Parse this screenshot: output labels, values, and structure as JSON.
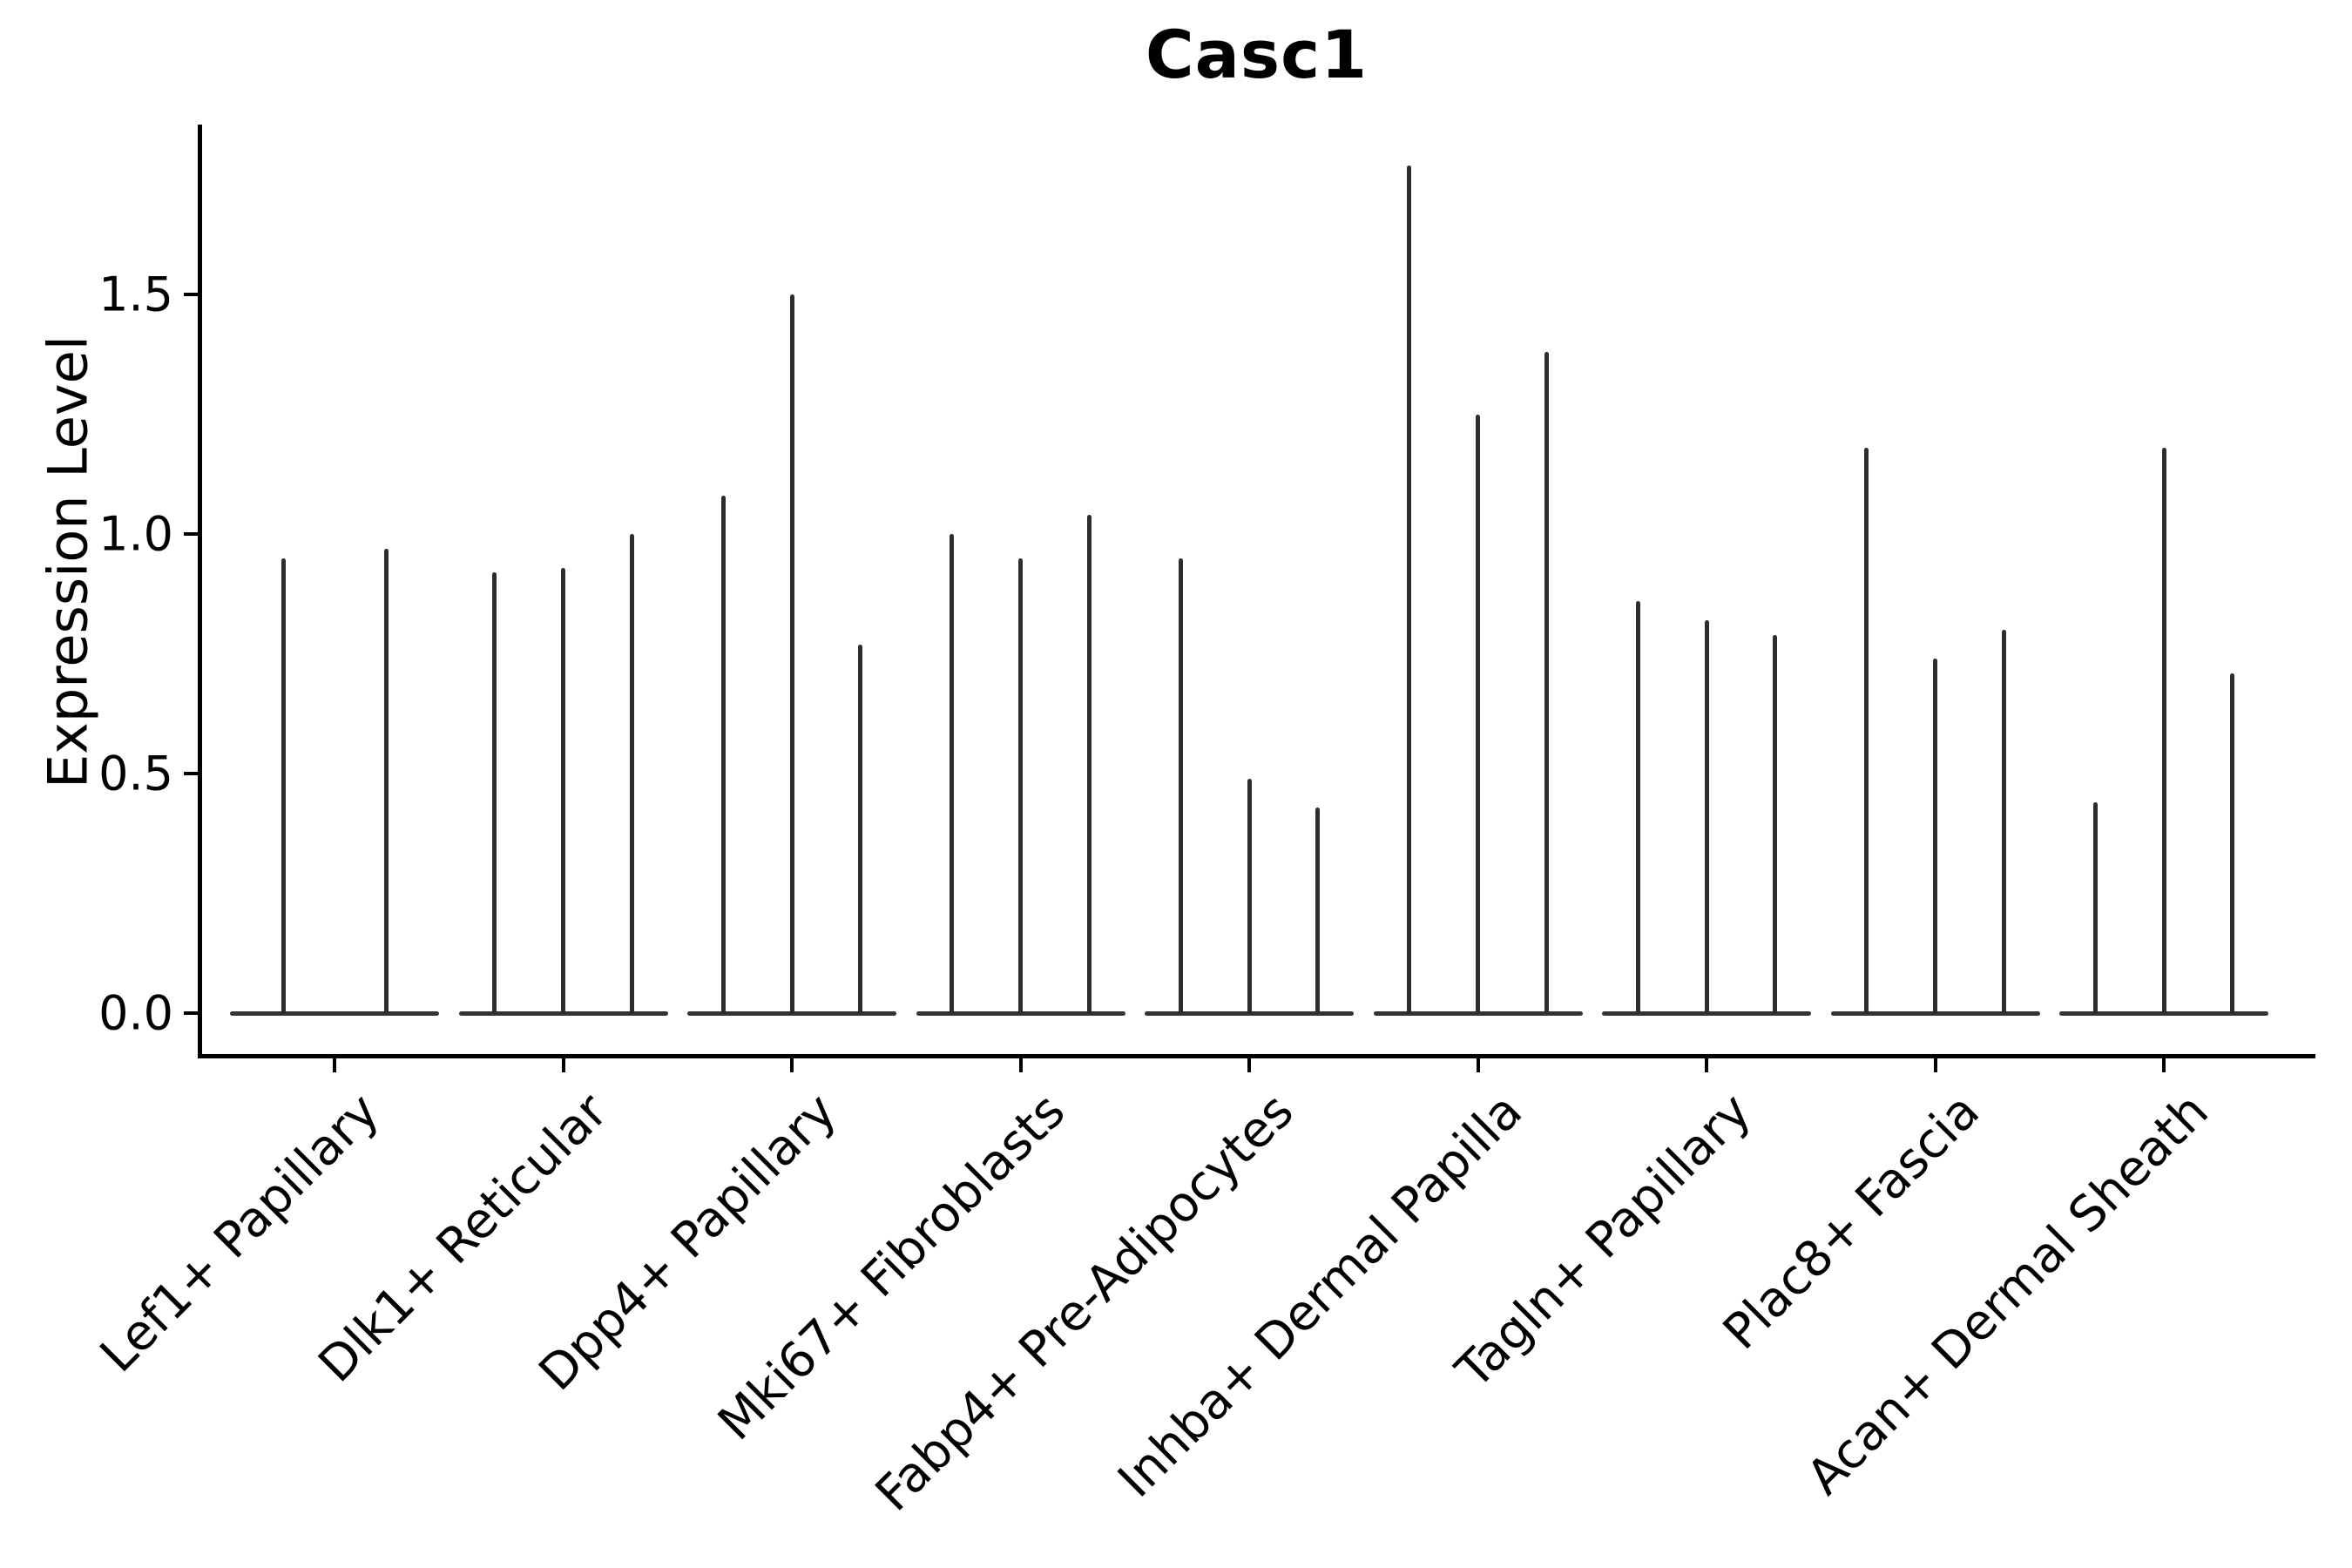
{
  "figure": {
    "title": "Casc1",
    "ylabel": "Expression Level"
  },
  "chart_data": {
    "type": "violin",
    "title": "Casc1",
    "xlabel": "",
    "ylabel": "Expression Level",
    "ylim": [
      -0.085,
      1.855
    ],
    "ytick_labels": [
      "0.0",
      "0.5",
      "1.0",
      "1.5"
    ],
    "ytick_values": [
      0.0,
      0.5,
      1.0,
      1.5
    ],
    "grid": false,
    "legend": false,
    "description": "Thin spike violins; each group shows 2-3 violins whose density is concentrated at 0 (wide flat base) with a narrow spike up to the maximum expression value.",
    "categories": [
      "Lef1+ Papillary",
      "Dlk1+ Reticular",
      "Dpp4+ Papillary",
      "Mki67+ Fibroblasts",
      "Fabp4+ Pre-Adipocytes",
      "Inhba+ Dermal Papilla",
      "Tagln+ Papillary",
      "Plac8+ Fascia",
      "Acan+ Dermal Sheath"
    ],
    "groups": [
      {
        "category": "Lef1+ Papillary",
        "violin_peaks": [
          0.95,
          0.97
        ]
      },
      {
        "category": "Dlk1+ Reticular",
        "violin_peaks": [
          0.92,
          0.93,
          1.0
        ]
      },
      {
        "category": "Dpp4+ Papillary",
        "violin_peaks": [
          1.08,
          1.5,
          0.77
        ]
      },
      {
        "category": "Mki67+ Fibroblasts",
        "violin_peaks": [
          1.0,
          0.95,
          1.04
        ]
      },
      {
        "category": "Fabp4+ Pre-Adipocytes",
        "violin_peaks": [
          0.95,
          0.49,
          0.43
        ]
      },
      {
        "category": "Inhba+ Dermal Papilla",
        "violin_peaks": [
          1.77,
          1.25,
          1.38
        ]
      },
      {
        "category": "Tagln+ Papillary",
        "violin_peaks": [
          0.86,
          0.82,
          0.79
        ]
      },
      {
        "category": "Plac8+ Fascia",
        "violin_peaks": [
          1.18,
          0.74,
          0.8
        ]
      },
      {
        "category": "Acan+ Dermal Sheath",
        "violin_peaks": [
          0.44,
          1.18,
          0.71
        ]
      }
    ],
    "colors": {
      "violin_stroke": "#2d2d2d",
      "violin_base": "#333333",
      "axis": "#000000",
      "text": "#000000",
      "background": "#ffffff"
    }
  }
}
